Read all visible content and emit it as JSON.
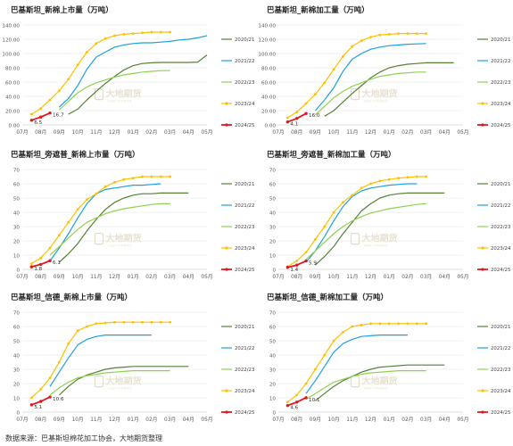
{
  "footer": "数据来源：巴基斯坦棉花加工协会，大地期货整理",
  "watermark": "大地期货",
  "watermark_en": "DADI FUTURES",
  "legend_labels": [
    "2020/21",
    "2021/22",
    "2022/23",
    "2023/24",
    "2024/25"
  ],
  "colors": {
    "2020/21": "#548235",
    "2021/22": "#1CA0DE",
    "2022/23": "#8FD14F",
    "2023/24": "#FFC000",
    "2024/25": "#E3161C"
  },
  "chart_data": [
    {
      "type": "line",
      "title": "巴基斯坦_新棉上市量（万吨）",
      "x_ticks": [
        "07月",
        "08月",
        "09月",
        "10月",
        "11月",
        "12月",
        "01月",
        "02月",
        "03月",
        "04月",
        "05月"
      ],
      "y_ticks": [
        "0.00",
        "20.00",
        "40.00",
        "60.00",
        "80.00",
        "100.00",
        "120.00",
        "140.00"
      ],
      "ylim": [
        0,
        140
      ],
      "series": [
        {
          "name": "2020/21",
          "x": [
            2.5,
            3,
            3.5,
            4,
            4.5,
            5,
            5.5,
            6,
            6.5,
            7,
            7.5,
            8,
            8.5,
            9,
            9.5,
            10
          ],
          "values": [
            15,
            22,
            35,
            47,
            58,
            68,
            77,
            83,
            86,
            87,
            87.5,
            87.5,
            87.5,
            87.5,
            88,
            98
          ]
        },
        {
          "name": "2021/22",
          "x": [
            2,
            2.5,
            3,
            3.5,
            4,
            4.5,
            5,
            5.5,
            6,
            6.5,
            7,
            7.5,
            8,
            8.5,
            9,
            9.5,
            10
          ],
          "values": [
            25,
            37,
            55,
            78,
            95,
            102,
            109,
            112,
            114,
            115,
            115,
            116,
            117,
            119,
            120,
            122,
            125
          ]
        },
        {
          "name": "2022/23",
          "x": [
            2,
            2.5,
            3,
            3.5,
            4,
            4.5,
            5,
            5.5,
            6,
            6.5,
            7,
            7.5,
            8
          ],
          "values": [
            21,
            33,
            45,
            53,
            59,
            63,
            67,
            70,
            72,
            74,
            75,
            76,
            76
          ]
        },
        {
          "name": "2023/24",
          "x": [
            0.5,
            1,
            1.5,
            2,
            2.5,
            3,
            3.5,
            4,
            4.5,
            5,
            5.5,
            6,
            6.5,
            7,
            7.5,
            8
          ],
          "values": [
            15,
            23,
            35,
            48,
            64,
            84,
            102,
            114,
            121,
            125,
            127,
            128,
            129,
            130,
            130,
            130
          ]
        },
        {
          "name": "2024/25",
          "x": [
            0.5,
            1,
            1.5
          ],
          "values": [
            6.5,
            11,
            16.7
          ]
        }
      ],
      "data_labels": [
        {
          "x": 0.5,
          "value": "6.5"
        },
        {
          "x": 1.5,
          "value": "16.7"
        }
      ]
    },
    {
      "type": "line",
      "title": "巴基斯坦_新棉加工量（万吨）",
      "x_ticks": [
        "07月",
        "08月",
        "09月",
        "10月",
        "11月",
        "12月",
        "01月",
        "02月",
        "03月",
        "04月",
        "05月"
      ],
      "y_ticks": [
        "0.00",
        "20.00",
        "40.00",
        "60.00",
        "80.00",
        "100.00",
        "120.00",
        "140.00"
      ],
      "ylim": [
        0,
        140
      ],
      "series": [
        {
          "name": "2020/21",
          "x": [
            2.5,
            3,
            3.5,
            4,
            4.5,
            5,
            5.5,
            6,
            6.5,
            7,
            7.5,
            8,
            8.5,
            9,
            9.5
          ],
          "values": [
            12,
            20,
            32,
            44,
            55,
            66,
            74,
            80,
            83,
            85,
            86,
            87,
            87,
            87,
            87
          ]
        },
        {
          "name": "2021/22",
          "x": [
            2,
            2.5,
            3,
            3.5,
            4,
            4.5,
            5,
            5.5,
            6,
            6.5,
            7,
            7.5,
            8
          ],
          "values": [
            20,
            35,
            52,
            75,
            92,
            100,
            106,
            109,
            111,
            112,
            113,
            113.5,
            114
          ]
        },
        {
          "name": "2022/23",
          "x": [
            2,
            2.5,
            3,
            3.5,
            4,
            4.5,
            5,
            5.5,
            6,
            6.5,
            7,
            7.5,
            8
          ],
          "values": [
            14,
            26,
            38,
            47,
            54,
            59,
            64,
            68,
            70,
            72,
            73,
            74,
            74
          ]
        },
        {
          "name": "2023/24",
          "x": [
            0.5,
            1,
            1.5,
            2,
            2.5,
            3,
            3.5,
            4,
            4.5,
            5,
            5.5,
            6,
            6.5,
            7,
            7.5,
            8
          ],
          "values": [
            10,
            18,
            30,
            43,
            59,
            78,
            96,
            110,
            118,
            123,
            126,
            127,
            128,
            128,
            128,
            128
          ]
        },
        {
          "name": "2024/25",
          "x": [
            0.5,
            1,
            1.5
          ],
          "values": [
            4.1,
            9,
            16.0
          ]
        }
      ],
      "data_labels": [
        {
          "x": 0.5,
          "value": "4.1"
        },
        {
          "x": 1.5,
          "value": "16.0"
        }
      ]
    },
    {
      "type": "line",
      "title": "巴基斯坦_旁遮普_新棉上市量（万吨）",
      "x_ticks": [
        "07月",
        "08月",
        "09月",
        "10月",
        "11月",
        "12月",
        "01月",
        "02月",
        "03月",
        "04月",
        "05月"
      ],
      "y_ticks": [
        "0",
        "10",
        "20",
        "30",
        "40",
        "50",
        "60",
        "70"
      ],
      "ylim": [
        0,
        70
      ],
      "series": [
        {
          "name": "2020/21",
          "x": [
            2,
            2.5,
            3,
            3.5,
            4,
            4.5,
            5,
            5.5,
            6,
            6.5,
            7,
            7.5,
            8,
            8.5,
            9
          ],
          "values": [
            5,
            11,
            18,
            27,
            35,
            42,
            47,
            50,
            52,
            53,
            53,
            53.5,
            53.5,
            53.5,
            53.5
          ]
        },
        {
          "name": "2021/22",
          "x": [
            1.5,
            2,
            2.5,
            3,
            3.5,
            4,
            4.5,
            5,
            5.5,
            6,
            6.5,
            7,
            7.5
          ],
          "values": [
            6,
            15,
            25,
            36,
            46,
            53,
            56,
            57,
            58,
            59,
            59,
            59.5,
            60
          ]
        },
        {
          "name": "2022/23",
          "x": [
            1.5,
            2,
            2.5,
            3,
            3.5,
            4,
            4.5,
            5,
            5.5,
            6,
            6.5,
            7,
            7.5,
            8
          ],
          "values": [
            10,
            16,
            22,
            28,
            33,
            36,
            39,
            41,
            42.5,
            43.5,
            44.5,
            45.5,
            46,
            46
          ]
        },
        {
          "name": "2023/24",
          "x": [
            0.5,
            1,
            1.5,
            2,
            2.5,
            3,
            3.5,
            4,
            4.5,
            5,
            5.5,
            6,
            6.5,
            7,
            7.5,
            8
          ],
          "values": [
            4,
            8,
            15,
            24,
            33,
            42,
            49,
            53,
            58,
            61,
            63,
            64,
            65,
            65,
            65,
            65
          ]
        },
        {
          "name": "2024/25",
          "x": [
            0.5,
            1,
            1.5
          ],
          "values": [
            1.8,
            3.5,
            6.1
          ]
        }
      ],
      "data_labels": [
        {
          "x": 0.5,
          "value": "1.8"
        },
        {
          "x": 1.5,
          "value": "6.1"
        }
      ]
    },
    {
      "type": "line",
      "title": "巴基斯坦_旁遮普_新棉加工量（万吨）",
      "x_ticks": [
        "07月",
        "08月",
        "09月",
        "10月",
        "11月",
        "12月",
        "01月",
        "02月",
        "03月",
        "04月",
        "05月"
      ],
      "y_ticks": [
        "0",
        "10",
        "20",
        "30",
        "40",
        "50",
        "60",
        "70"
      ],
      "ylim": [
        0,
        70
      ],
      "series": [
        {
          "name": "2020/21",
          "x": [
            2,
            2.5,
            3,
            3.5,
            4,
            4.5,
            5,
            5.5,
            6,
            6.5,
            7,
            7.5,
            8,
            8.5,
            9
          ],
          "values": [
            3,
            9,
            16,
            25,
            33,
            41,
            46,
            50,
            52,
            53,
            53.5,
            53.5,
            53.5,
            53.5,
            53.5
          ]
        },
        {
          "name": "2021/22",
          "x": [
            1.5,
            2,
            2.5,
            3,
            3.5,
            4,
            4.5,
            5,
            5.5,
            6,
            6.5,
            7,
            7.5
          ],
          "values": [
            5,
            13,
            23,
            34,
            44,
            51,
            55,
            57,
            58,
            59,
            59.5,
            60,
            60
          ]
        },
        {
          "name": "2022/23",
          "x": [
            1.5,
            2,
            2.5,
            3,
            3.5,
            4,
            4.5,
            5,
            5.5,
            6,
            6.5,
            7,
            7.5,
            8
          ],
          "values": [
            7,
            13,
            19,
            25,
            30,
            34,
            37,
            39.5,
            41,
            42.5,
            43.5,
            44.5,
            45.5,
            46
          ]
        },
        {
          "name": "2023/24",
          "x": [
            0.5,
            1,
            1.5,
            2,
            2.5,
            3,
            3.5,
            4,
            4.5,
            5,
            5.5,
            6,
            6.5,
            7,
            7.5,
            8
          ],
          "values": [
            2,
            6,
            12,
            21,
            30,
            40,
            47,
            52,
            57,
            60,
            62,
            63,
            64,
            64.5,
            65,
            65
          ]
        },
        {
          "name": "2024/25",
          "x": [
            0.5,
            1,
            1.5
          ],
          "values": [
            1.4,
            3,
            5.9
          ]
        }
      ],
      "data_labels": [
        {
          "x": 0.5,
          "value": "1.4"
        },
        {
          "x": 1.5,
          "value": "5.9"
        }
      ]
    },
    {
      "type": "line",
      "title": "巴基斯坦_信德_新棉上市量（万吨）",
      "x_ticks": [
        "07月",
        "08月",
        "09月",
        "10月",
        "11月",
        "12月",
        "01月",
        "02月",
        "03月",
        "04月",
        "05月"
      ],
      "y_ticks": [
        "0",
        "10",
        "20",
        "30",
        "40",
        "50",
        "60",
        "70"
      ],
      "ylim": [
        0,
        70
      ],
      "series": [
        {
          "name": "2020/21",
          "x": [
            2,
            2.5,
            3,
            3.5,
            4,
            4.5,
            5,
            5.5,
            6,
            6.5,
            7,
            7.5,
            8,
            8.5,
            9
          ],
          "values": [
            12,
            18,
            23,
            26,
            28,
            30,
            31,
            31.5,
            32,
            32,
            32,
            32,
            32,
            32,
            32
          ]
        },
        {
          "name": "2021/22",
          "x": [
            1.5,
            2,
            2.5,
            3,
            3.5,
            4,
            4.5,
            5,
            5.5,
            6,
            6.5,
            7
          ],
          "values": [
            18,
            28,
            38,
            47,
            51,
            53,
            54,
            54,
            54,
            54,
            54,
            54
          ]
        },
        {
          "name": "2022/23",
          "x": [
            1.5,
            2,
            2.5,
            3,
            3.5,
            4,
            4.5,
            5,
            5.5,
            6,
            6.5,
            7,
            7.5,
            8
          ],
          "values": [
            12,
            17,
            21,
            24,
            25.5,
            26.5,
            27.5,
            28,
            28.5,
            29,
            29,
            29,
            29,
            29
          ]
        },
        {
          "name": "2023/24",
          "x": [
            0.5,
            1,
            1.5,
            2,
            2.5,
            3,
            3.5,
            4,
            4.5,
            5,
            5.5,
            6,
            6.5,
            7,
            7.5,
            8
          ],
          "values": [
            10,
            16,
            24,
            35,
            48,
            57,
            60,
            62,
            62.5,
            63,
            63,
            63,
            63,
            63,
            63,
            63
          ]
        },
        {
          "name": "2024/25",
          "x": [
            0.5,
            1,
            1.5
          ],
          "values": [
            5.1,
            7.5,
            10.6
          ]
        }
      ],
      "data_labels": [
        {
          "x": 0.5,
          "value": "5.1"
        },
        {
          "x": 1.5,
          "value": "10.6"
        }
      ]
    },
    {
      "type": "line",
      "title": "巴基斯坦_信德_新棉加工量（万吨）",
      "x_ticks": [
        "07月",
        "08月",
        "09月",
        "10月",
        "11月",
        "12月",
        "01月",
        "02月",
        "03月",
        "04月",
        "05月"
      ],
      "y_ticks": [
        "0",
        "10",
        "20",
        "30",
        "40",
        "50",
        "60",
        "70"
      ],
      "ylim": [
        0,
        70
      ],
      "series": [
        {
          "name": "2020/21",
          "x": [
            2,
            2.5,
            3,
            3.5,
            4,
            4.5,
            5,
            5.5,
            6,
            6.5,
            7,
            7.5,
            8,
            8.5,
            9
          ],
          "values": [
            8,
            13,
            18,
            22,
            25,
            28,
            30,
            31.5,
            32,
            32.5,
            33,
            33,
            33,
            33,
            33
          ]
        },
        {
          "name": "2021/22",
          "x": [
            1.5,
            2,
            2.5,
            3,
            3.5,
            4,
            4.5,
            5,
            5.5,
            6,
            6.5,
            7
          ],
          "values": [
            13,
            22,
            32,
            42,
            48,
            51,
            53,
            53.5,
            54,
            54,
            54,
            54
          ]
        },
        {
          "name": "2022/23",
          "x": [
            1.5,
            2,
            2.5,
            3,
            3.5,
            4,
            4.5,
            5,
            5.5,
            6,
            6.5,
            7,
            7.5,
            8
          ],
          "values": [
            9,
            13,
            17,
            21,
            23,
            25,
            26.5,
            27.5,
            28,
            28.5,
            29,
            29,
            29,
            29
          ]
        },
        {
          "name": "2023/24",
          "x": [
            0.5,
            1,
            1.5,
            2,
            2.5,
            3,
            3.5,
            4,
            4.5,
            5,
            5.5,
            6,
            6.5,
            7,
            7.5,
            8
          ],
          "values": [
            7,
            12,
            20,
            30,
            40,
            50,
            56,
            60,
            61,
            62,
            62,
            62,
            62,
            62,
            62,
            62
          ]
        },
        {
          "name": "2024/25",
          "x": [
            0.5,
            1,
            1.5
          ],
          "values": [
            4.6,
            7,
            10.1
          ]
        }
      ],
      "data_labels": [
        {
          "x": 0.5,
          "value": "4.6"
        },
        {
          "x": 1.5,
          "value": "10.1"
        }
      ]
    }
  ]
}
